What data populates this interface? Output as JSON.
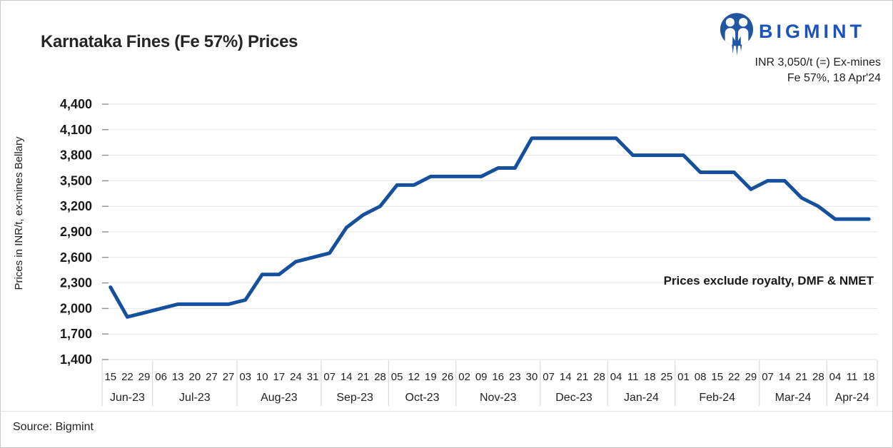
{
  "header": {
    "title": "Karnataka Fines (Fe 57%) Prices",
    "brand": "BIGMINT",
    "price_summary_line1": "INR 3,050/t (=) Ex-mines",
    "price_summary_line2": "Fe 57%, 18 Apr'24"
  },
  "annotation": "Prices exclude royalty, DMF & NMET",
  "footer": {
    "source": "Source: Bigmint"
  },
  "colors": {
    "line": "#15509e",
    "icon_blue": "#2155a4",
    "brand_blue": "#1c52be",
    "grid": "#e6e6e6",
    "separator": "#d4d4d4",
    "tick": "#8f8f8f",
    "text": "#1f1f1f"
  },
  "chart_data": {
    "type": "line",
    "title": "Karnataka Fines (Fe 57%) Prices",
    "ylabel": "Prices in INR/t, ex-mines Bellary",
    "xlabel": "",
    "ylim": [
      1400,
      4400
    ],
    "y_tick_step": 300,
    "y_ticks": [
      "4,400",
      "4,100",
      "3,800",
      "3,500",
      "3,200",
      "2,900",
      "2,600",
      "2,300",
      "2,000",
      "1,700",
      "1,400"
    ],
    "grid": true,
    "legend": "none",
    "series_name": "Karnataka fines (Fe 57%) ex-mines Bellary price, INR/t",
    "months": [
      {
        "label": "Jun-23",
        "days": [
          "15",
          "22",
          "29"
        ]
      },
      {
        "label": "Jul-23",
        "days": [
          "06",
          "13",
          "20",
          "27",
          "27"
        ]
      },
      {
        "label": "Aug-23",
        "days": [
          "03",
          "10",
          "17",
          "24",
          "31"
        ]
      },
      {
        "label": "Sep-23",
        "days": [
          "07",
          "14",
          "21",
          "28"
        ]
      },
      {
        "label": "Oct-23",
        "days": [
          "05",
          "12",
          "19",
          "26"
        ]
      },
      {
        "label": "Nov-23",
        "days": [
          "02",
          "09",
          "16",
          "23",
          "30"
        ]
      },
      {
        "label": "Dec-23",
        "days": [
          "07",
          "14",
          "21",
          "28"
        ]
      },
      {
        "label": "Jan-24",
        "days": [
          "04",
          "11",
          "18",
          "25"
        ]
      },
      {
        "label": "Feb-24",
        "days": [
          "01",
          "08",
          "15",
          "22",
          "29"
        ]
      },
      {
        "label": "Mar-24",
        "days": [
          "07",
          "14",
          "21",
          "28"
        ]
      },
      {
        "label": "Apr-24",
        "days": [
          "04",
          "11",
          "18"
        ]
      }
    ],
    "values": [
      2250,
      1900,
      1950,
      2000,
      2050,
      2050,
      2050,
      2050,
      2100,
      2400,
      2400,
      2550,
      2600,
      2650,
      2950,
      3100,
      3200,
      3450,
      3450,
      3550,
      3550,
      3550,
      3550,
      3650,
      3650,
      4000,
      4000,
      4000,
      4000,
      4000,
      4000,
      3800,
      3800,
      3800,
      3800,
      3600,
      3600,
      3600,
      3400,
      3500,
      3500,
      3300,
      3200,
      3050,
      3050,
      3050
    ]
  }
}
